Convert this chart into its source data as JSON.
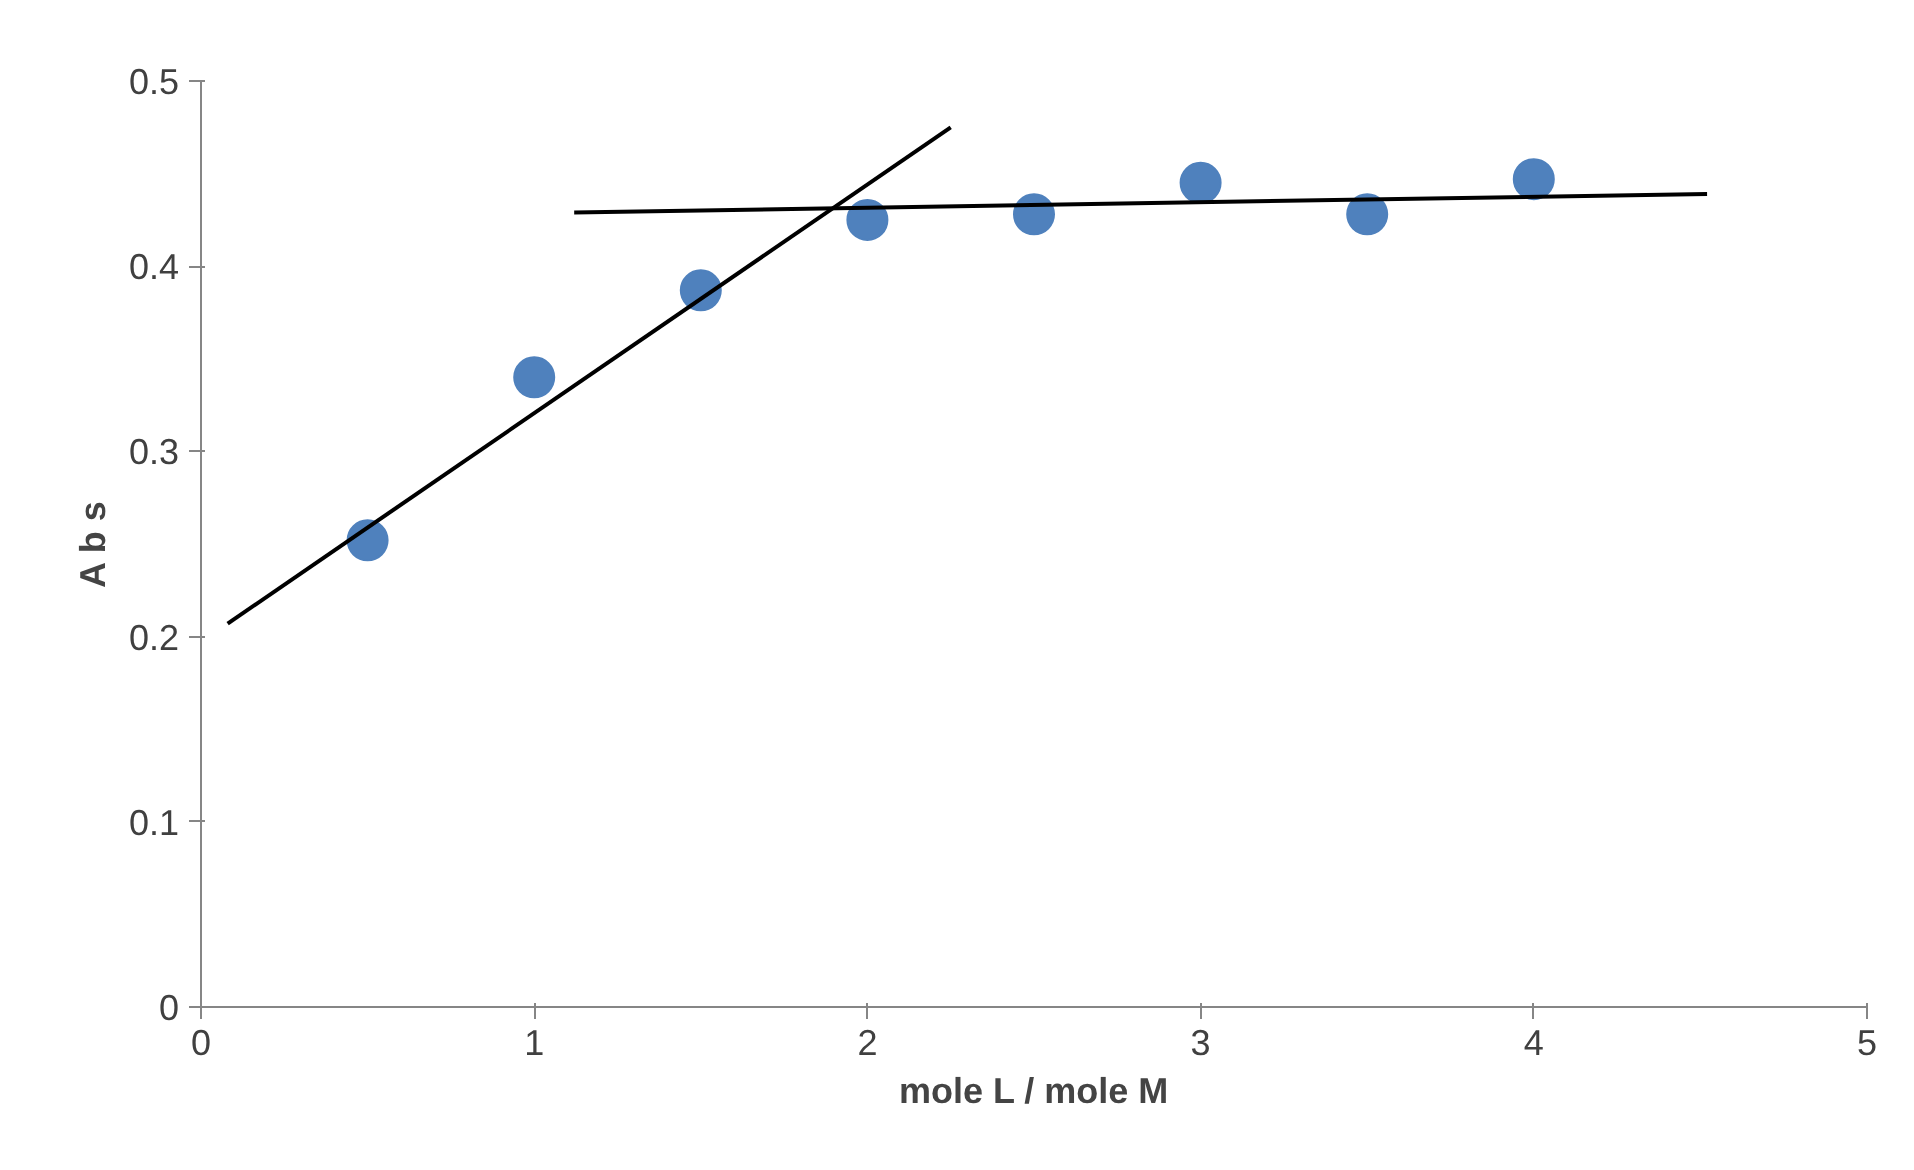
{
  "chart_data": {
    "type": "scatter",
    "xlabel": "mole L / mole M",
    "ylabel": "A b s",
    "xlim": [
      0,
      5
    ],
    "ylim": [
      0,
      0.5
    ],
    "xticks": [
      0,
      1,
      2,
      3,
      4,
      5
    ],
    "yticks": [
      0,
      0.1,
      0.2,
      0.3,
      0.4,
      0.5
    ],
    "grid": false,
    "series": [
      {
        "marker": "circle",
        "color": "#4f81bd",
        "x": [
          0.5,
          1,
          1.5,
          2,
          2.5,
          3,
          3.5,
          4
        ],
        "values": [
          0.252,
          0.34,
          0.387,
          0.425,
          0.428,
          0.445,
          0.428,
          0.447
        ]
      },
      {
        "type": "line",
        "color": "#000000",
        "x": [
          0.08,
          2.25
        ],
        "values": [
          0.207,
          0.475
        ]
      },
      {
        "type": "line",
        "color": "#000000",
        "x": [
          1.12,
          4.52
        ],
        "values": [
          0.429,
          0.439
        ]
      }
    ]
  }
}
